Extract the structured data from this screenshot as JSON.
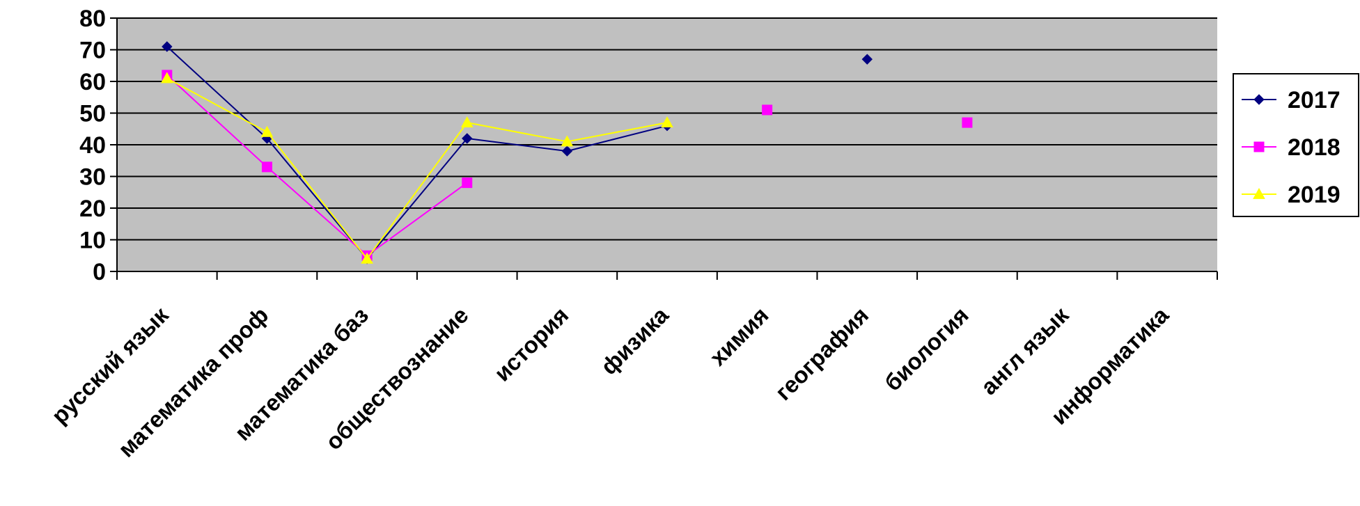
{
  "chart_data": {
    "type": "line",
    "title": "",
    "xlabel": "",
    "ylabel": "",
    "categories": [
      "русский язык",
      "математика проф",
      "математика баз",
      "обществознание",
      "история",
      "физика",
      "химия",
      "география",
      "биология",
      "англ язык",
      "информатика"
    ],
    "ylim": [
      0,
      80
    ],
    "yticks": [
      0,
      10,
      20,
      30,
      40,
      50,
      60,
      70,
      80
    ],
    "grid": true,
    "legend_position": "right",
    "series": [
      {
        "name": "2017",
        "values": [
          71,
          42,
          4,
          42,
          38,
          46,
          null,
          67,
          null,
          null,
          null
        ],
        "color": "#000080",
        "marker": "diamond"
      },
      {
        "name": "2018",
        "values": [
          62,
          33,
          5,
          28,
          null,
          null,
          51,
          null,
          47,
          null,
          null
        ],
        "color": "#FF00FF",
        "marker": "square"
      },
      {
        "name": "2019",
        "values": [
          61,
          44,
          4,
          47,
          41,
          47,
          null,
          null,
          null,
          null,
          null
        ],
        "color": "#FFFF00",
        "marker": "triangle"
      }
    ]
  }
}
